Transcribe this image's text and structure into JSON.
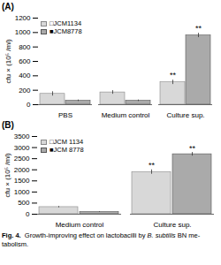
{
  "chart_data": [
    {
      "type": "bar",
      "title": "(A)",
      "categories": [
        "PBS",
        "Medium control",
        "Culture sup."
      ],
      "series": [
        {
          "name": "□JCM1134",
          "color": "#d8d8d8",
          "edgecolor": "#888888",
          "values": [
            150,
            170,
            310
          ],
          "errors": [
            30,
            25,
            30
          ]
        },
        {
          "name": "■JCM8778",
          "color": "#aaaaaa",
          "edgecolor": "#555555",
          "values": [
            55,
            55,
            960
          ],
          "errors": [
            10,
            10,
            30
          ]
        }
      ],
      "error_color": "#333333",
      "ylabel": "cfu × (10⁵ /ml)",
      "ylim": [
        0,
        1200
      ],
      "yticks": [
        0,
        200,
        400,
        600,
        800,
        1000,
        1200
      ],
      "grid": false,
      "legend": "upper left",
      "annotations": [
        {
          "text": "**",
          "category": "Culture sup.",
          "series": "□JCM1134",
          "y": 370
        },
        {
          "text": "**",
          "category": "Culture sup.",
          "series": "■JCM8778",
          "y": 1020
        }
      ]
    },
    {
      "type": "bar",
      "title": "(B)",
      "categories": [
        "Medium control",
        "Culture sup."
      ],
      "series": [
        {
          "name": "□JCM 1134",
          "color": "#d8d8d8",
          "edgecolor": "#888888",
          "values": [
            320,
            1900
          ],
          "errors": [
            30,
            100
          ]
        },
        {
          "name": "■JCM 8778",
          "color": "#aaaaaa",
          "edgecolor": "#555555",
          "values": [
            100,
            2700
          ],
          "errors": [
            15,
            80
          ]
        }
      ],
      "error_color": "#333333",
      "ylabel": "cfu × (10⁵ /ml)",
      "ylim": [
        0,
        3500
      ],
      "yticks": [
        0,
        500,
        1000,
        1500,
        2000,
        2500,
        3000,
        3500
      ],
      "grid": false,
      "legend": "upper left",
      "annotations": [
        {
          "text": "**",
          "category": "Culture sup.",
          "series": "□JCM 1134",
          "y": 2080
        },
        {
          "text": "**",
          "category": "Culture sup.",
          "series": "■JCM 8778",
          "y": 2840
        }
      ]
    }
  ],
  "caption": [
    [
      {
        "text": "Fig. 4.",
        "weight": "bold"
      },
      {
        "text": "  Growth-improving effect on lactobacilli by "
      },
      {
        "text": "B. subtilis",
        "style": "italic"
      },
      {
        "text": " BN me-"
      }
    ],
    [
      {
        "text": "tabolism."
      }
    ]
  ]
}
